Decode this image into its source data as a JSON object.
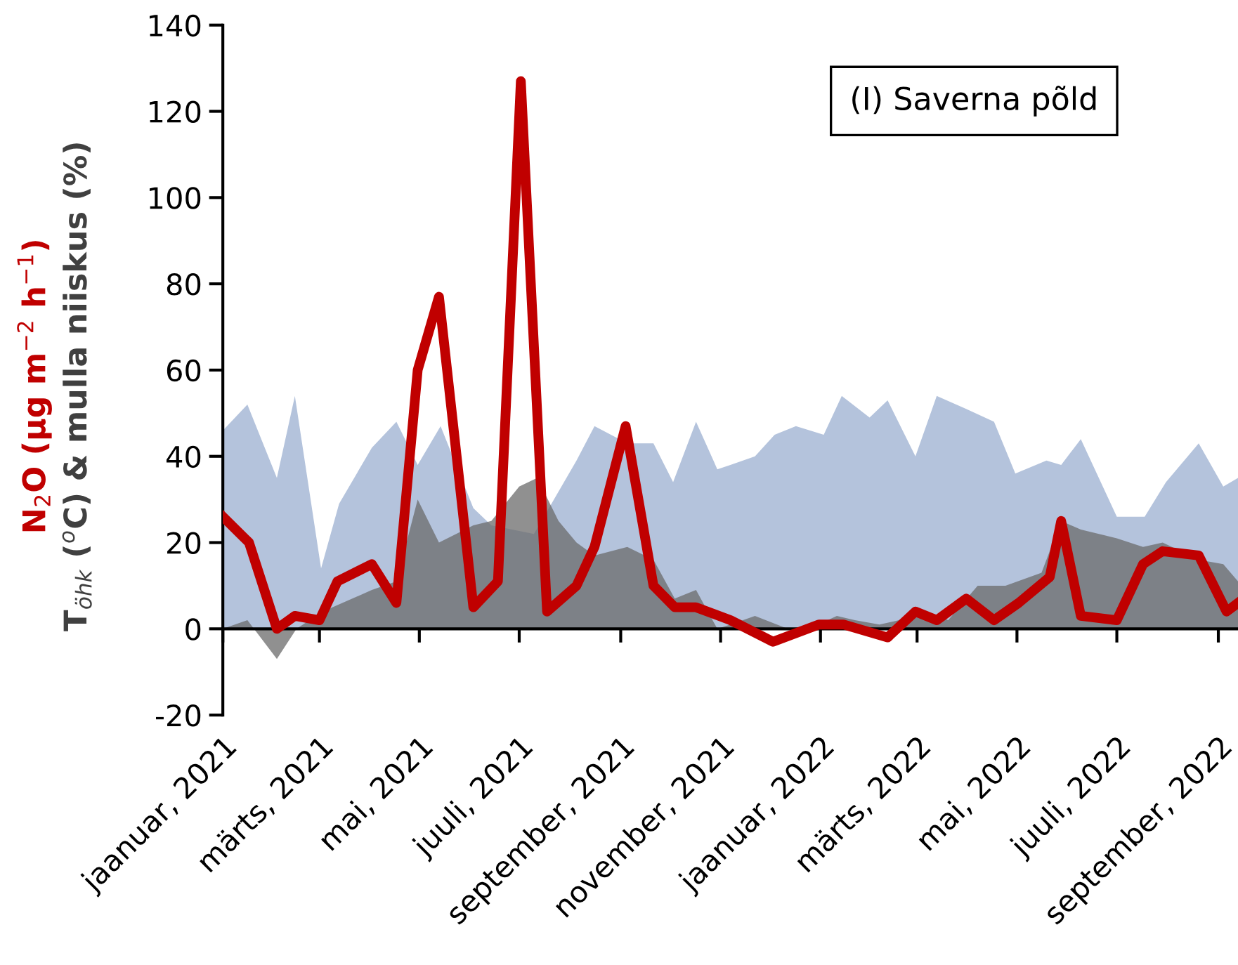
{
  "chart_data": {
    "type": "area",
    "ylabel": "N$_{2}$O (µg m$^{−2}$ h$^{−1}$)\nT$_{öhk}$ ($^{o}$C) & mulla niiskus (%)",
    "annotations": [
      "(I) Saverna põld"
    ],
    "xlim": [
      "2021-01-01",
      "2022-09-13"
    ],
    "xticks": [
      {
        "value": "2021-01-01",
        "label": "jaanuar, 2021"
      },
      {
        "value": "2021-03-01",
        "label": "märts, 2021"
      },
      {
        "value": "2021-05-01",
        "label": "mai, 2021"
      },
      {
        "value": "2021-07-01",
        "label": "juuli, 2021"
      },
      {
        "value": "2021-09-01",
        "label": "september, 2021"
      },
      {
        "value": "2021-11-01",
        "label": "november, 2021"
      },
      {
        "value": "2022-01-01",
        "label": "jaanuar, 2022"
      },
      {
        "value": "2022-03-01",
        "label": "märts, 2022"
      },
      {
        "value": "2022-05-01",
        "label": "mai, 2022"
      },
      {
        "value": "2022-07-01",
        "label": "juuli, 2022"
      },
      {
        "value": "2022-09-01",
        "label": "september, 2022"
      }
    ],
    "ylim": [
      -20,
      140
    ],
    "yticks": [
      -20,
      0,
      20,
      40,
      60,
      80,
      100,
      120,
      140
    ],
    "legend": false,
    "series": [
      {
        "color": "#b4c3dc",
        "x": [
          "2021-01-01",
          "2021-01-16",
          "2021-02-03",
          "2021-02-14",
          "2021-03-02",
          "2021-03-13",
          "2021-04-02",
          "2021-04-17",
          "2021-04-30",
          "2021-05-14",
          "2021-06-03",
          "2021-06-14",
          "2021-07-10",
          "2021-08-05",
          "2021-08-16",
          "2021-09-05",
          "2021-09-21",
          "2021-10-03",
          "2021-10-17",
          "2021-10-30",
          "2021-11-07",
          "2021-11-22",
          "2021-12-04",
          "2021-12-17",
          "2022-01-03",
          "2022-01-14",
          "2022-01-31",
          "2022-02-11",
          "2022-02-28",
          "2022-03-13",
          "2022-03-31",
          "2022-04-17",
          "2022-04-30",
          "2022-05-19",
          "2022-05-28",
          "2022-06-09",
          "2022-07-01",
          "2022-07-18",
          "2022-07-31",
          "2022-08-20",
          "2022-09-04",
          "2022-09-13"
        ],
        "values": [
          46,
          52,
          35,
          54,
          14,
          29,
          42,
          48,
          38,
          47,
          28,
          24,
          22,
          39,
          47,
          43,
          43,
          34,
          48,
          37,
          38,
          40,
          45,
          47,
          45,
          54,
          49,
          53,
          40,
          54,
          51,
          48,
          36,
          39,
          38,
          44,
          26,
          26,
          34,
          43,
          33,
          35
        ]
      },
      {
        "color": "#6b6b6b",
        "x": [
          "2021-01-01",
          "2021-01-16",
          "2021-02-03",
          "2021-02-15",
          "2021-03-03",
          "2021-04-02",
          "2021-04-17",
          "2021-04-30",
          "2021-05-13",
          "2021-06-03",
          "2021-06-14",
          "2021-07-01",
          "2021-07-12",
          "2021-07-25",
          "2021-08-05",
          "2021-08-16",
          "2021-09-05",
          "2021-09-21",
          "2021-10-04",
          "2021-10-17",
          "2021-10-30",
          "2021-11-07",
          "2021-11-22",
          "2021-12-12",
          "2021-12-25",
          "2022-01-11",
          "2022-01-22",
          "2022-02-06",
          "2022-02-18",
          "2022-03-07",
          "2022-03-20",
          "2022-04-07",
          "2022-04-24",
          "2022-05-16",
          "2022-05-28",
          "2022-06-09",
          "2022-07-01",
          "2022-07-17",
          "2022-07-29",
          "2022-08-20",
          "2022-09-04",
          "2022-09-13"
        ],
        "values": [
          0,
          2,
          -7,
          0,
          4,
          9,
          11,
          30,
          20,
          24,
          25,
          33,
          35,
          25,
          20,
          17,
          19,
          16,
          7,
          9,
          0,
          1,
          3,
          0,
          0,
          3,
          2,
          1,
          2,
          4,
          2,
          10,
          10,
          13,
          25,
          23,
          21,
          19,
          20,
          16,
          15,
          11
        ]
      },
      {
        "type": "line",
        "color": "#c00000",
        "marker": "none",
        "line_style": "solid",
        "x": [
          "2021-01-01",
          "2021-01-17",
          "2021-02-03",
          "2021-02-14",
          "2021-03-01",
          "2021-03-12",
          "2021-04-02",
          "2021-04-17",
          "2021-04-30",
          "2021-05-13",
          "2021-06-03",
          "2021-06-18",
          "2021-07-02",
          "2021-07-18",
          "2021-08-05",
          "2021-08-16",
          "2021-09-04",
          "2021-09-21",
          "2021-10-04",
          "2021-10-17",
          "2021-11-07",
          "2021-12-03",
          "2021-12-31",
          "2022-01-15",
          "2022-02-11",
          "2022-02-28",
          "2022-03-13",
          "2022-03-31",
          "2022-04-17",
          "2022-05-02",
          "2022-05-21",
          "2022-05-28",
          "2022-06-09",
          "2022-07-01",
          "2022-07-17",
          "2022-07-29",
          "2022-08-20",
          "2022-09-06",
          "2022-09-13"
        ],
        "values": [
          26,
          20,
          0,
          3,
          2,
          11,
          15,
          6,
          60,
          77,
          5,
          11,
          127,
          4,
          10,
          19,
          47,
          10,
          5,
          5,
          2,
          -3,
          1,
          1,
          -2,
          4,
          2,
          7,
          2,
          6,
          12,
          25,
          3,
          2,
          15,
          18,
          17,
          4,
          6
        ]
      }
    ]
  }
}
